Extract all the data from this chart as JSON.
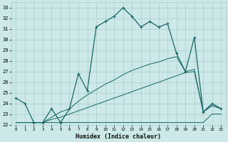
{
  "xlabel": "Humidex (Indice chaleur)",
  "bg_color": "#cce8e8",
  "grid_color": "#aacccc",
  "line_color": "#1a6666",
  "xlim": [
    -0.5,
    23.5
  ],
  "ylim": [
    22,
    33.5
  ],
  "yticks": [
    22,
    23,
    24,
    25,
    26,
    27,
    28,
    29,
    30,
    31,
    32,
    33
  ],
  "xticks": [
    0,
    1,
    2,
    3,
    4,
    5,
    6,
    7,
    8,
    9,
    10,
    11,
    12,
    13,
    14,
    15,
    16,
    17,
    18,
    19,
    20,
    21,
    22,
    23
  ],
  "series1_x": [
    0,
    1,
    2,
    3,
    4,
    5,
    6,
    7,
    8,
    9,
    10,
    11,
    12,
    13,
    14,
    15,
    16,
    17,
    18,
    19,
    20,
    21,
    22,
    23
  ],
  "series1_y": [
    24.5,
    24.0,
    22.2,
    22.2,
    23.5,
    22.2,
    23.5,
    26.8,
    25.2,
    31.2,
    31.7,
    32.2,
    33.0,
    32.2,
    31.2,
    31.7,
    31.2,
    31.5,
    28.7,
    27.0,
    30.2,
    23.2,
    24.0,
    23.5
  ],
  "series2_x": [
    0,
    1,
    2,
    3,
    4,
    5,
    6,
    7,
    8,
    9,
    10,
    11,
    12,
    13,
    14,
    15,
    16,
    17,
    18,
    19,
    20,
    21,
    22,
    23
  ],
  "series2_y": [
    22.2,
    22.2,
    22.2,
    22.2,
    22.2,
    22.2,
    22.2,
    22.2,
    22.2,
    22.2,
    22.2,
    22.2,
    22.2,
    22.2,
    22.2,
    22.2,
    22.2,
    22.2,
    22.2,
    22.2,
    22.2,
    22.2,
    23.0,
    23.0
  ],
  "series3_x": [
    0,
    1,
    2,
    3,
    4,
    5,
    6,
    7,
    8,
    9,
    10,
    11,
    12,
    13,
    14,
    15,
    16,
    17,
    18,
    19,
    20,
    21,
    22,
    23
  ],
  "series3_y": [
    22.2,
    22.2,
    22.2,
    22.2,
    22.5,
    22.7,
    23.0,
    23.3,
    23.6,
    23.9,
    24.2,
    24.5,
    24.8,
    25.1,
    25.4,
    25.7,
    26.0,
    26.3,
    26.6,
    26.9,
    27.0,
    23.2,
    23.8,
    23.5
  ],
  "series4_x": [
    0,
    1,
    2,
    3,
    4,
    5,
    6,
    7,
    8,
    9,
    10,
    11,
    12,
    13,
    14,
    15,
    16,
    17,
    18,
    19,
    20,
    21,
    22,
    23
  ],
  "series4_y": [
    22.2,
    22.2,
    22.2,
    22.2,
    22.7,
    23.2,
    23.5,
    24.2,
    24.8,
    25.3,
    25.8,
    26.2,
    26.7,
    27.1,
    27.4,
    27.7,
    27.9,
    28.2,
    28.4,
    27.0,
    27.2,
    23.2,
    23.8,
    23.5
  ]
}
